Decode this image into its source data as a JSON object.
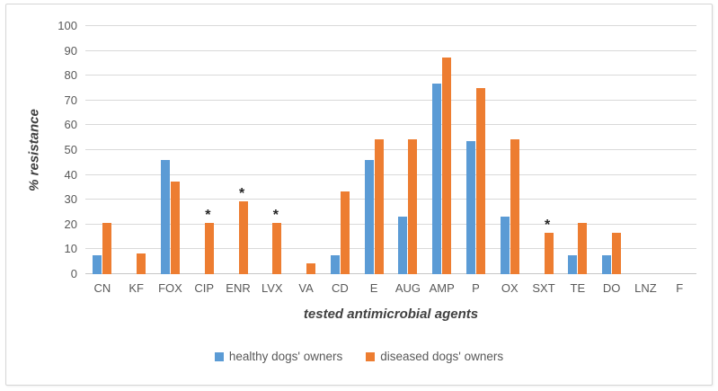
{
  "chart_data": {
    "type": "bar",
    "title": "",
    "xlabel": "tested antimicrobial agents",
    "ylabel": "% resistance",
    "ylim": [
      0,
      100
    ],
    "ytick_step": 10,
    "grid": true,
    "legend_position": "bottom",
    "categories": [
      "CN",
      "KF",
      "FOX",
      "CIP",
      "ENR",
      "LVX",
      "VA",
      "CD",
      "E",
      "AUG",
      "AMP",
      "P",
      "OX",
      "SXT",
      "TE",
      "DO",
      "LNZ",
      "F"
    ],
    "series": [
      {
        "name": "healthy dogs' owners",
        "color": "#5B9BD5",
        "values": [
          7.7,
          0,
          46.2,
          0,
          0,
          0,
          0,
          7.7,
          46.2,
          23.1,
          76.9,
          53.8,
          23.1,
          0,
          7.7,
          7.7,
          0,
          0
        ]
      },
      {
        "name": "diseased dogs' owners",
        "color": "#ED7D31",
        "values": [
          20.8,
          8.3,
          37.5,
          20.8,
          29.2,
          20.8,
          4.2,
          33.3,
          54.2,
          54.2,
          87.5,
          75,
          54.2,
          16.7,
          20.8,
          16.7,
          0,
          0
        ]
      }
    ],
    "annotations": {
      "symbol": "*",
      "asterisk_categories": [
        "CIP",
        "ENR",
        "LVX",
        "SXT"
      ],
      "asterisk_on_series": "diseased dogs' owners"
    },
    "colors": {
      "gridline": "#D9D9D9",
      "axis_line": "#C6C6C6",
      "tick_text": "#595959",
      "title_text": "#404040",
      "annotation_text": "#262626",
      "frame_border": "#D6D6D6"
    }
  }
}
